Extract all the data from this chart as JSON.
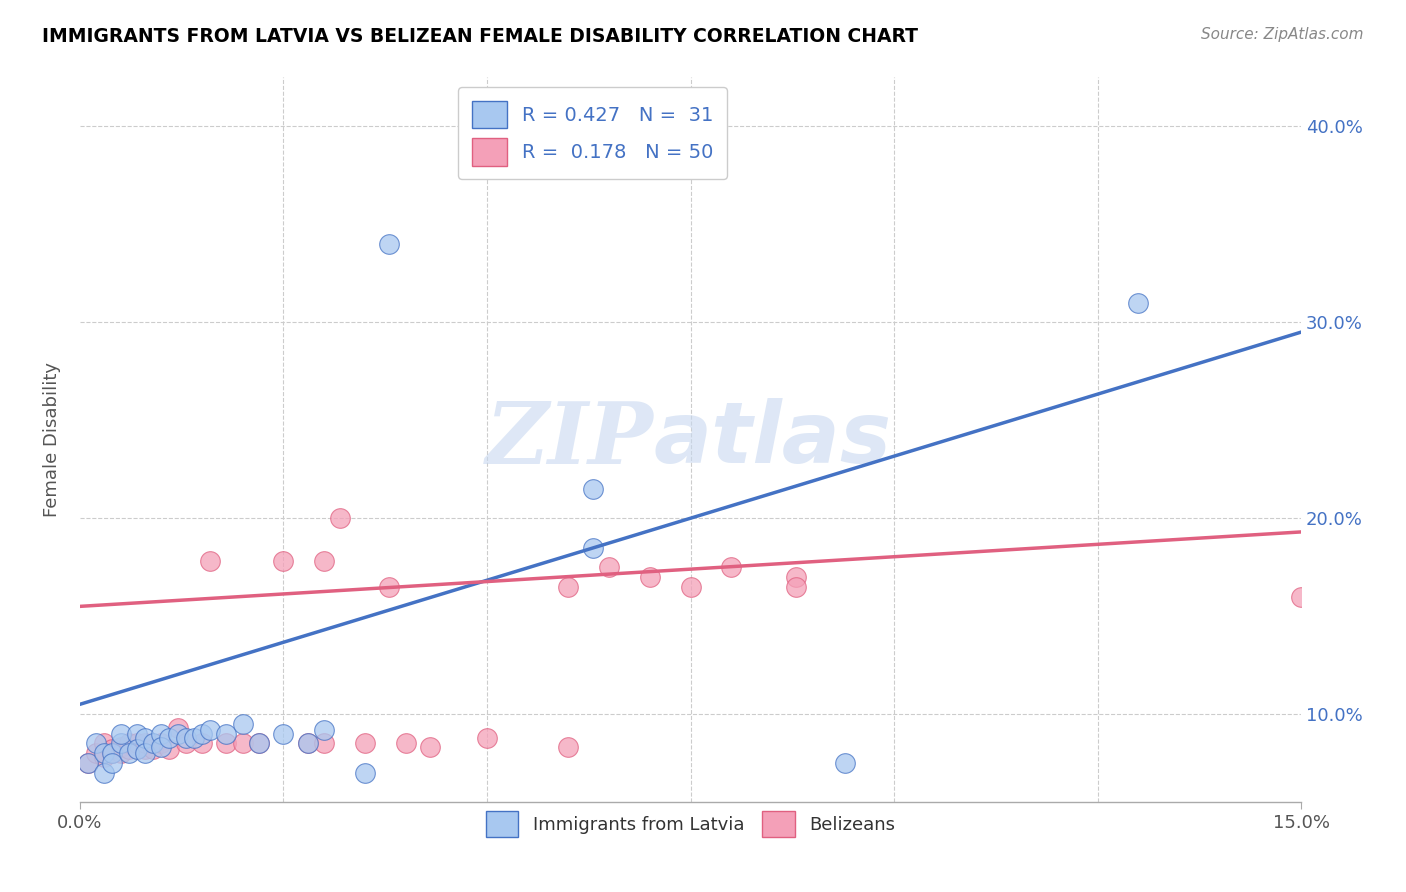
{
  "title": "IMMIGRANTS FROM LATVIA VS BELIZEAN FEMALE DISABILITY CORRELATION CHART",
  "source": "Source: ZipAtlas.com",
  "ylabel": "Female Disability",
  "xlim": [
    0.0,
    0.15
  ],
  "ylim": [
    0.055,
    0.425
  ],
  "ytick_labels": [
    "10.0%",
    "20.0%",
    "30.0%",
    "40.0%"
  ],
  "yticks": [
    0.1,
    0.2,
    0.3,
    0.4
  ],
  "color_blue": "#A8C8F0",
  "color_pink": "#F4A0B8",
  "line_blue": "#4472C4",
  "line_pink": "#E06080",
  "watermark_zip": "ZIP",
  "watermark_atlas": "atlas",
  "blue_trend_x0": 0.0,
  "blue_trend_y0": 0.105,
  "blue_trend_x1": 0.15,
  "blue_trend_y1": 0.295,
  "pink_trend_x0": 0.0,
  "pink_trend_y0": 0.155,
  "pink_trend_x1": 0.15,
  "pink_trend_y1": 0.193,
  "blue_scatter_x": [
    0.001,
    0.002,
    0.003,
    0.003,
    0.004,
    0.004,
    0.005,
    0.005,
    0.006,
    0.007,
    0.007,
    0.008,
    0.008,
    0.009,
    0.01,
    0.01,
    0.011,
    0.012,
    0.013,
    0.014,
    0.015,
    0.016,
    0.018,
    0.02,
    0.022,
    0.025,
    0.028,
    0.03,
    0.035,
    0.038,
    0.063,
    0.063,
    0.094,
    0.13
  ],
  "blue_scatter_y": [
    0.075,
    0.085,
    0.07,
    0.08,
    0.08,
    0.075,
    0.085,
    0.09,
    0.08,
    0.09,
    0.082,
    0.088,
    0.08,
    0.085,
    0.09,
    0.083,
    0.088,
    0.09,
    0.088,
    0.088,
    0.09,
    0.092,
    0.09,
    0.095,
    0.085,
    0.09,
    0.085,
    0.092,
    0.07,
    0.34,
    0.185,
    0.215,
    0.075,
    0.31
  ],
  "pink_scatter_x": [
    0.001,
    0.002,
    0.003,
    0.003,
    0.004,
    0.004,
    0.005,
    0.005,
    0.006,
    0.006,
    0.007,
    0.007,
    0.008,
    0.008,
    0.009,
    0.01,
    0.011,
    0.012,
    0.013,
    0.015,
    0.016,
    0.018,
    0.02,
    0.022,
    0.025,
    0.028,
    0.03,
    0.03,
    0.032,
    0.035,
    0.038,
    0.04,
    0.043,
    0.05,
    0.06,
    0.065,
    0.07,
    0.075,
    0.08,
    0.088,
    0.088,
    0.15,
    0.06
  ],
  "pink_scatter_y": [
    0.075,
    0.08,
    0.078,
    0.085,
    0.08,
    0.082,
    0.083,
    0.08,
    0.082,
    0.085,
    0.082,
    0.085,
    0.082,
    0.085,
    0.082,
    0.085,
    0.082,
    0.093,
    0.085,
    0.085,
    0.178,
    0.085,
    0.085,
    0.085,
    0.178,
    0.085,
    0.085,
    0.178,
    0.2,
    0.085,
    0.165,
    0.085,
    0.083,
    0.088,
    0.165,
    0.175,
    0.17,
    0.165,
    0.175,
    0.17,
    0.165,
    0.16,
    0.083
  ]
}
